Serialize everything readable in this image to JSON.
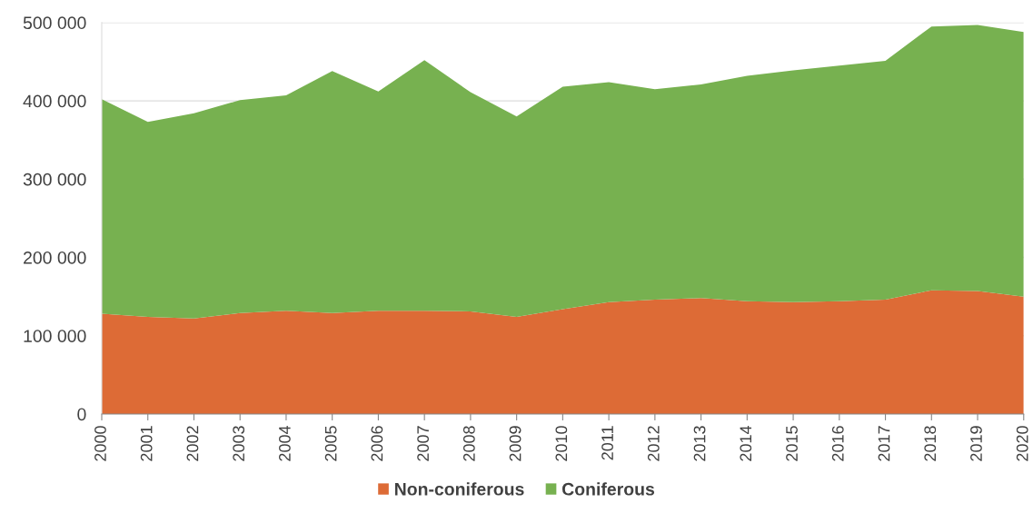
{
  "chart_data": {
    "type": "area",
    "stacked": true,
    "x": [
      2000,
      2001,
      2002,
      2003,
      2004,
      2005,
      2006,
      2007,
      2008,
      2009,
      2010,
      2011,
      2012,
      2013,
      2014,
      2015,
      2016,
      2017,
      2018,
      2019,
      2020
    ],
    "series": [
      {
        "name": "Non-coniferous",
        "color": "#dd6b36",
        "values": [
          128000,
          124000,
          122000,
          129000,
          132000,
          129000,
          132000,
          132000,
          131000,
          124000,
          134000,
          143000,
          146000,
          148000,
          144000,
          143000,
          144000,
          146000,
          158000,
          157000,
          150000
        ]
      },
      {
        "name": "Coniferous",
        "color": "#77b150",
        "values": [
          274000,
          249000,
          262000,
          272000,
          275000,
          309000,
          280000,
          320000,
          280000,
          256000,
          284000,
          281000,
          269000,
          273000,
          288000,
          296000,
          301000,
          305000,
          337000,
          340000,
          338000
        ]
      }
    ],
    "xlim": [
      2000,
      2020
    ],
    "xticks": [
      2000,
      2001,
      2002,
      2003,
      2004,
      2005,
      2006,
      2007,
      2008,
      2009,
      2010,
      2011,
      2012,
      2013,
      2014,
      2015,
      2016,
      2017,
      2018,
      2019,
      2020
    ],
    "ylim": [
      0,
      500000
    ],
    "yticks": [
      0,
      {
        "value": 100000,
        "label": "100 000"
      },
      {
        "value": 200000,
        "label": "200 000"
      },
      {
        "value": 300000,
        "label": "300 000"
      },
      {
        "value": 400000,
        "label": "400 000"
      },
      {
        "value": 500000,
        "label": "500 000"
      }
    ],
    "grid": "y",
    "legend": "bottom"
  }
}
